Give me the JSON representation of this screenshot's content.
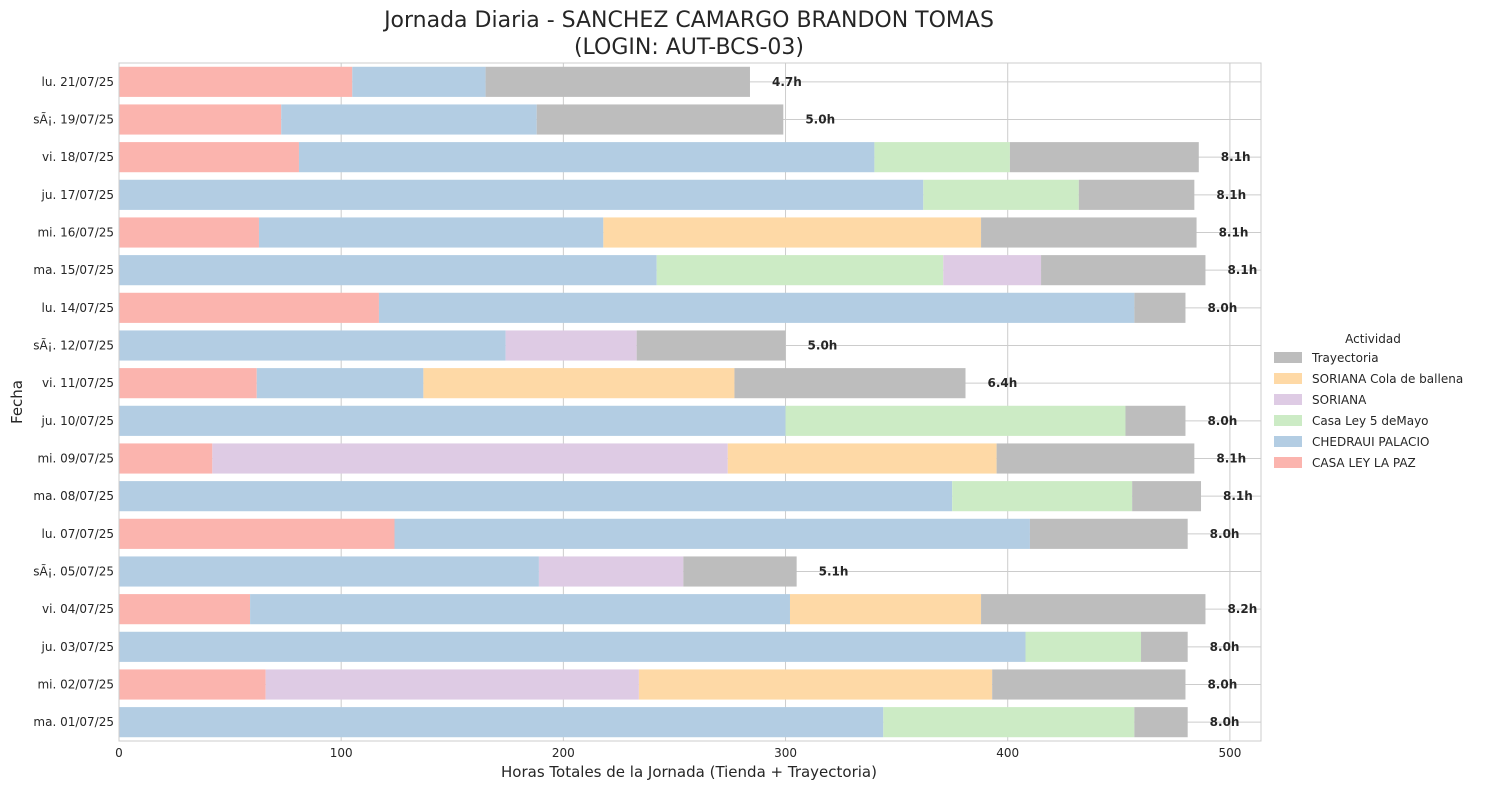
{
  "chart_data": {
    "type": "bar",
    "orientation": "horizontal",
    "stacked": true,
    "title_line1": "Jornada Diaria - SANCHEZ CAMARGO BRANDON TOMAS",
    "title_line2": "(LOGIN: AUT-BCS-03)",
    "xlabel": "Horas Totales de la Jornada (Tienda + Trayectoria)",
    "ylabel": "Fecha",
    "xlim": [
      0,
      514
    ],
    "xticks": [
      0,
      100,
      200,
      300,
      400,
      500
    ],
    "grid": true,
    "legend_title": "Actividad",
    "legend_position": "center-right",
    "categories": [
      "lu. 21/07/25",
      "sÃ¡. 19/07/25",
      "vi. 18/07/25",
      "ju. 17/07/25",
      "mi. 16/07/25",
      "ma. 15/07/25",
      "lu. 14/07/25",
      "sÃ¡. 12/07/25",
      "vi. 11/07/25",
      "ju. 10/07/25",
      "mi. 09/07/25",
      "ma. 08/07/25",
      "lu. 07/07/25",
      "sÃ¡. 05/07/25",
      "vi. 04/07/25",
      "ju. 03/07/25",
      "mi. 02/07/25",
      "ma. 01/07/25"
    ],
    "series": [
      {
        "name": "CASA LEY LA PAZ",
        "color": "#fbb4ae",
        "values": [
          105,
          73,
          81,
          0,
          63,
          0,
          117,
          0,
          62,
          0,
          42,
          0,
          124,
          0,
          59,
          0,
          66,
          0
        ]
      },
      {
        "name": "CHEDRAUI PALACIO",
        "color": "#b3cde3",
        "values": [
          60,
          115,
          259,
          362,
          155,
          242,
          340,
          174,
          75,
          300,
          0,
          375,
          286,
          189,
          243,
          408,
          0,
          344
        ]
      },
      {
        "name": "Casa Ley 5 deMayo",
        "color": "#ccebc5",
        "values": [
          0,
          0,
          61,
          70,
          0,
          129,
          0,
          0,
          0,
          153,
          0,
          81,
          0,
          0,
          0,
          52,
          0,
          113
        ]
      },
      {
        "name": "SORIANA",
        "color": "#decbe4",
        "values": [
          0,
          0,
          0,
          0,
          0,
          44,
          0,
          59,
          0,
          0,
          232,
          0,
          0,
          65,
          0,
          0,
          168,
          0
        ]
      },
      {
        "name": "SORIANA Cola de ballena",
        "color": "#fed9a6",
        "values": [
          0,
          0,
          0,
          0,
          170,
          0,
          0,
          0,
          140,
          0,
          121,
          0,
          0,
          0,
          86,
          0,
          159,
          0
        ]
      },
      {
        "name": "Trayectoria",
        "color": "#bdbdbd",
        "values": [
          119,
          111,
          85,
          52,
          97,
          74,
          23,
          67,
          104,
          27,
          89,
          31,
          71,
          51,
          101,
          21,
          87,
          24
        ]
      }
    ],
    "bar_labels": [
      "4.7h",
      "5.0h",
      "8.1h",
      "8.1h",
      "8.1h",
      "8.1h",
      "8.0h",
      "5.0h",
      "6.4h",
      "8.0h",
      "8.1h",
      "8.1h",
      "8.0h",
      "5.1h",
      "8.2h",
      "8.0h",
      "8.0h",
      "8.0h"
    ],
    "legend_order": [
      "Trayectoria",
      "SORIANA Cola de ballena",
      "SORIANA",
      "Casa Ley 5 deMayo",
      "CHEDRAUI PALACIO",
      "CASA LEY LA PAZ"
    ]
  }
}
